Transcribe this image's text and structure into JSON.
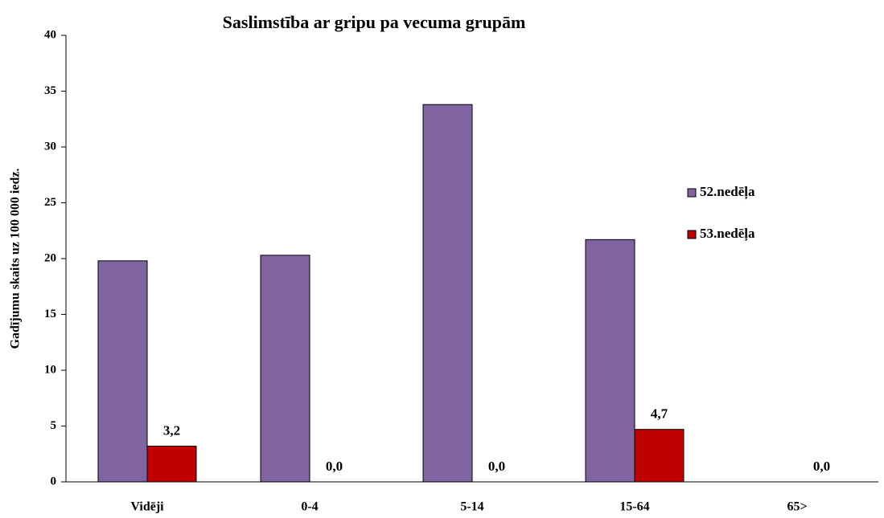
{
  "chart_data": {
    "type": "bar",
    "title": "Saslimstība ar gripu pa vecuma grupām",
    "y_label": "Gadījumu skaits uz 100 000 iedz.",
    "categories": [
      "Vidēji",
      "0-4",
      "5-14",
      "15-64",
      "65>"
    ],
    "series": [
      {
        "name": "52.nedēļa",
        "color": "#8064a2",
        "values": [
          19.8,
          20.3,
          33.8,
          21.7,
          null
        ]
      },
      {
        "name": "53.nedēļa",
        "color": "#c00000",
        "values": [
          3.2,
          0.0,
          0.0,
          4.7,
          0.0
        ],
        "value_labels": [
          "3,2",
          "0,0",
          "0,0",
          "4,7",
          "0,0"
        ]
      }
    ],
    "ylim": [
      0,
      40
    ],
    "yticks": [
      0,
      5,
      10,
      15,
      20,
      25,
      30,
      35,
      40
    ],
    "legend": "right"
  }
}
